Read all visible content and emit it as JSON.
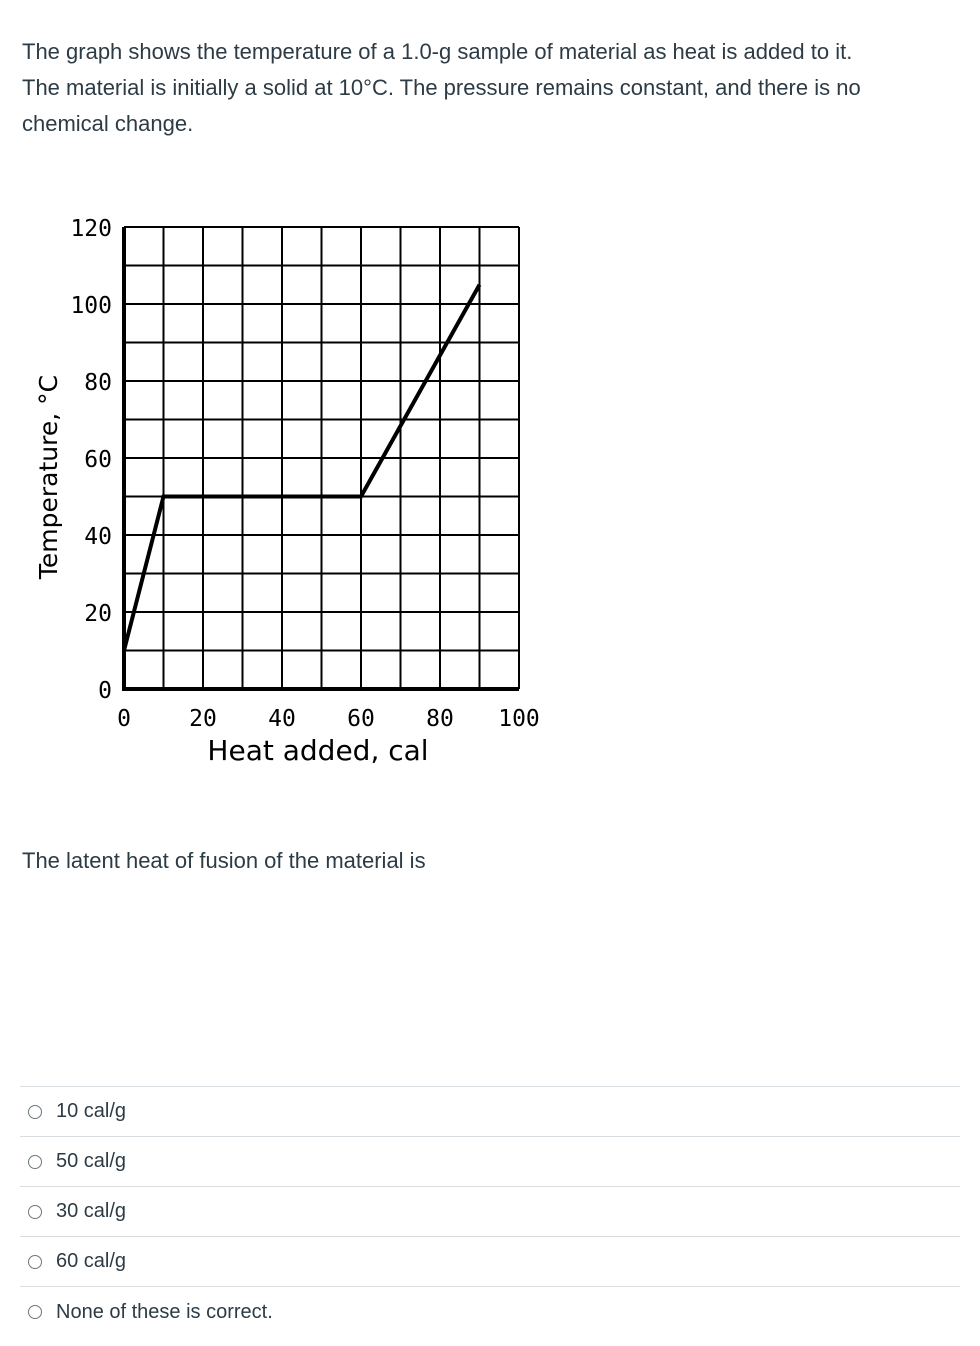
{
  "question": {
    "lines": [
      "The graph shows the temperature of a 1.0-g sample of material as heat is added to it.",
      "The material is initially a solid at 10°C.  The pressure remains constant, and there is no",
      "chemical change."
    ],
    "prompt": "The latent heat of fusion of the material is"
  },
  "chart_data": {
    "type": "line",
    "xlabel": "Heat added, cal",
    "ylabel": "Temperature, °C",
    "xlim": [
      0,
      100
    ],
    "ylim": [
      0,
      120
    ],
    "x_ticks": [
      "0",
      "20",
      "40",
      "60",
      "80",
      "100"
    ],
    "y_ticks": [
      "0",
      "20",
      "40",
      "60",
      "80",
      "100",
      "120"
    ],
    "grid": true,
    "grid_step_x": 10,
    "grid_step_y": 10,
    "series": [
      {
        "x": [
          0,
          10,
          60,
          90
        ],
        "y": [
          10,
          50,
          50,
          105
        ]
      }
    ]
  },
  "answers": [
    {
      "label": "10 cal/g"
    },
    {
      "label": "50 cal/g"
    },
    {
      "label": "30 cal/g"
    },
    {
      "label": "60 cal/g"
    },
    {
      "label": "None of these is correct."
    }
  ]
}
